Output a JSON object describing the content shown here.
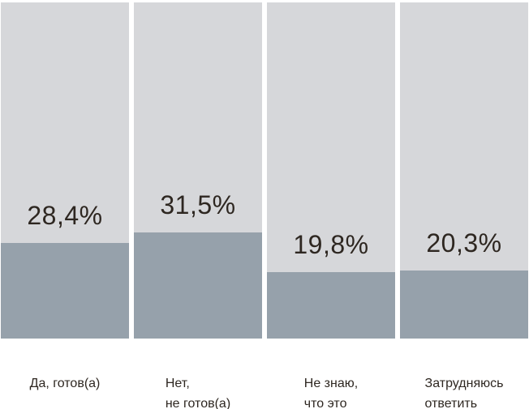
{
  "chart_data": {
    "type": "bar",
    "title": "",
    "xlabel": "",
    "ylabel": "",
    "unit": "%",
    "ylim": [
      0,
      100
    ],
    "grid": false,
    "legend_position": "none",
    "orientation": "vertical",
    "categories": [
      "Да, готов(а)",
      "Нет, не готов(а)",
      "Не знаю, что это",
      "Затрудняюсь ответить"
    ],
    "categories_lines": [
      [
        "Да, готов(а)",
        ""
      ],
      [
        "Нет,",
        "не готов(а)"
      ],
      [
        "Не знаю,",
        "что это"
      ],
      [
        "Затрудняюсь",
        "ответить"
      ]
    ],
    "values": [
      28.4,
      31.5,
      19.8,
      20.3
    ],
    "value_labels": [
      "28,4%",
      "31,5%",
      "19,8%",
      "20,3%"
    ],
    "colors": {
      "track": "#d6d7da",
      "fill": "#96a1ab",
      "text": "#2e2721",
      "background": "#ffffff"
    }
  }
}
